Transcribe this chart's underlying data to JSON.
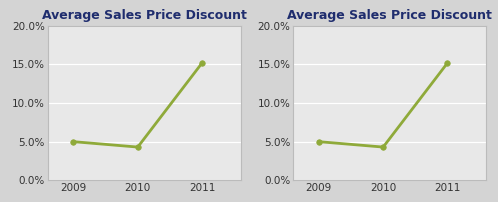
{
  "title": "Average Sales Price Discount",
  "years": [
    2009,
    2010,
    2011
  ],
  "values": [
    0.05,
    0.043,
    0.152
  ],
  "line_color": "#8faa3a",
  "marker": "o",
  "marker_size": 4,
  "ylim": [
    0.0,
    0.2
  ],
  "yticks": [
    0.0,
    0.05,
    0.1,
    0.15,
    0.2
  ],
  "plot_bg_color": "#e8e8e8",
  "outer_bg_color": "#d4d4d4",
  "chart_bg_color": "#f0f0f0",
  "grid_color": "#ffffff",
  "title_color": "#1f2d6e",
  "title_fontsize": 9,
  "tick_fontsize": 7.5,
  "line_width": 2.0
}
